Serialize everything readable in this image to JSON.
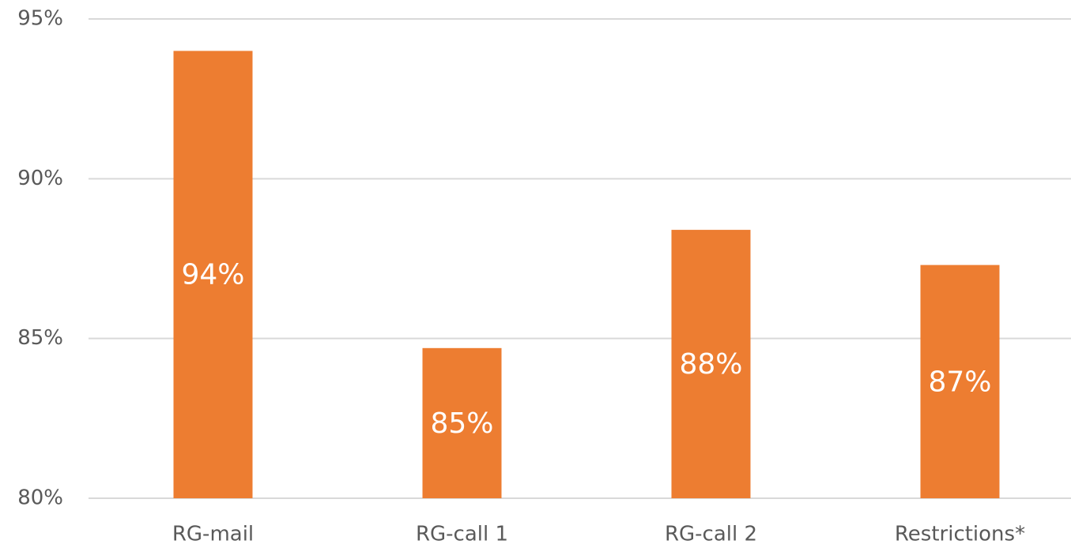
{
  "chart_data": {
    "type": "bar",
    "categories": [
      "RG-mail",
      "RG-call 1",
      "RG-call 2",
      "Restrictions*"
    ],
    "values": [
      94,
      84.7,
      88.4,
      87.3
    ],
    "value_labels": [
      "94%",
      "85%",
      "88%",
      "87%"
    ],
    "color": "#ed7d31",
    "ylim": [
      80,
      95
    ],
    "yticks": [
      {
        "value": 80,
        "label": "80%"
      },
      {
        "value": 85,
        "label": "85%"
      },
      {
        "value": 90,
        "label": "90%"
      },
      {
        "value": 95,
        "label": "95%"
      }
    ],
    "grid": true
  }
}
